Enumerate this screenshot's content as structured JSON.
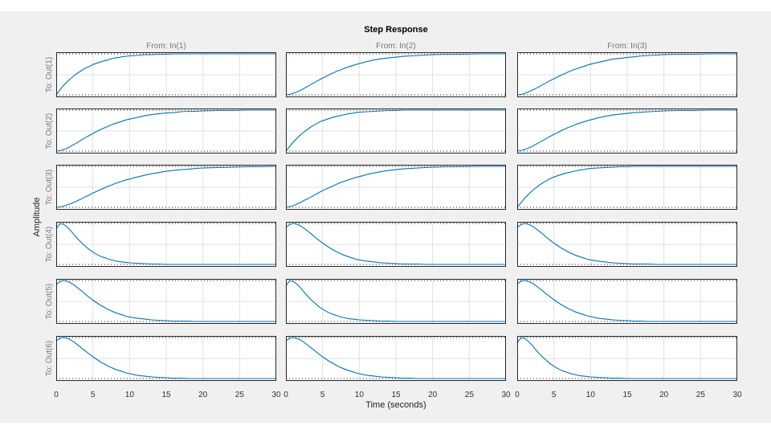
{
  "chart_data": {
    "type": "line",
    "title": "Step Response",
    "xlabel": "Time (seconds)",
    "ylabel": "Amplitude",
    "xlim": [
      0,
      30
    ],
    "xticks": [
      0,
      5,
      10,
      15,
      20,
      25,
      30
    ],
    "grid": true,
    "line_color": "#0072bd",
    "inputs": [
      "From: In(1)",
      "From: In(2)",
      "From: In(3)"
    ],
    "outputs": [
      "To: Out(1)",
      "To: Out(2)",
      "To: Out(3)",
      "To: Out(4)",
      "To: Out(5)",
      "To: Out(6)"
    ],
    "t": [
      0,
      0.5,
      1,
      1.5,
      2,
      2.5,
      3,
      3.5,
      4,
      4.5,
      5,
      5.5,
      6,
      6.5,
      7,
      7.5,
      8,
      8.5,
      9,
      9.5,
      10,
      11,
      12,
      13,
      14,
      15,
      16,
      17,
      18,
      19,
      20,
      22,
      24,
      26,
      28,
      30
    ],
    "panels": [
      [
        {
          "y": [
            0.0,
            0.12,
            0.23,
            0.32,
            0.4,
            0.48,
            0.54,
            0.6,
            0.65,
            0.69,
            0.74,
            0.77,
            0.8,
            0.83,
            0.85,
            0.88,
            0.9,
            0.91,
            0.93,
            0.94,
            0.95,
            0.96,
            0.98,
            0.98,
            0.99,
            0.99,
            1.0,
            1.0,
            1.0,
            1.0,
            1.0,
            1.0,
            1.0,
            1.0,
            1.0,
            1.0
          ]
        },
        {
          "y": [
            0.0,
            0.01,
            0.04,
            0.07,
            0.12,
            0.17,
            0.22,
            0.28,
            0.33,
            0.38,
            0.43,
            0.48,
            0.52,
            0.56,
            0.6,
            0.64,
            0.67,
            0.7,
            0.73,
            0.76,
            0.78,
            0.82,
            0.86,
            0.89,
            0.91,
            0.93,
            0.94,
            0.96,
            0.97,
            0.97,
            0.98,
            0.99,
            0.99,
            1.0,
            1.0,
            1.0
          ]
        },
        {
          "y": [
            0.0,
            0.01,
            0.03,
            0.06,
            0.09,
            0.13,
            0.17,
            0.21,
            0.26,
            0.3,
            0.35,
            0.39,
            0.43,
            0.47,
            0.51,
            0.54,
            0.58,
            0.61,
            0.64,
            0.67,
            0.69,
            0.74,
            0.78,
            0.82,
            0.85,
            0.88,
            0.9,
            0.92,
            0.93,
            0.95,
            0.96,
            0.97,
            0.98,
            0.99,
            0.99,
            1.0
          ]
        },
        {
          "y": [
            0.87,
            0.99,
            0.98,
            0.91,
            0.82,
            0.71,
            0.61,
            0.52,
            0.44,
            0.36,
            0.3,
            0.25,
            0.2,
            0.17,
            0.14,
            0.11,
            0.09,
            0.07,
            0.06,
            0.05,
            0.04,
            0.03,
            0.02,
            0.01,
            0.01,
            0.0,
            0.0,
            0.0,
            0.0,
            0.0,
            0.0,
            0.0,
            0.0,
            0.0,
            0.0,
            0.0
          ]
        },
        {
          "y": [
            0.9,
            0.97,
            1.0,
            0.98,
            0.94,
            0.88,
            0.81,
            0.74,
            0.66,
            0.59,
            0.52,
            0.46,
            0.4,
            0.35,
            0.3,
            0.26,
            0.22,
            0.19,
            0.16,
            0.13,
            0.11,
            0.08,
            0.06,
            0.04,
            0.03,
            0.02,
            0.01,
            0.01,
            0.01,
            0.0,
            0.0,
            0.0,
            0.0,
            0.0,
            0.0,
            0.0
          ]
        },
        {
          "y": [
            0.92,
            0.98,
            1.0,
            0.98,
            0.94,
            0.88,
            0.81,
            0.74,
            0.67,
            0.6,
            0.53,
            0.47,
            0.41,
            0.36,
            0.31,
            0.27,
            0.23,
            0.2,
            0.17,
            0.14,
            0.12,
            0.08,
            0.06,
            0.04,
            0.03,
            0.02,
            0.01,
            0.01,
            0.0,
            0.0,
            0.0,
            0.0,
            0.0,
            0.0,
            0.0,
            0.0
          ]
        }
      ],
      [
        {
          "y": [
            0.0,
            0.01,
            0.04,
            0.07,
            0.11,
            0.16,
            0.21,
            0.26,
            0.31,
            0.36,
            0.41,
            0.45,
            0.5,
            0.54,
            0.58,
            0.61,
            0.65,
            0.68,
            0.71,
            0.74,
            0.76,
            0.81,
            0.85,
            0.88,
            0.9,
            0.92,
            0.94,
            0.95,
            0.96,
            0.97,
            0.98,
            0.99,
            0.99,
            1.0,
            1.0,
            1.0
          ]
        },
        {
          "y": [
            0.0,
            0.11,
            0.22,
            0.31,
            0.4,
            0.47,
            0.54,
            0.6,
            0.65,
            0.7,
            0.74,
            0.77,
            0.8,
            0.83,
            0.85,
            0.87,
            0.89,
            0.91,
            0.92,
            0.94,
            0.95,
            0.96,
            0.97,
            0.98,
            0.99,
            0.99,
            1.0,
            1.0,
            1.0,
            1.0,
            1.0,
            1.0,
            1.0,
            1.0,
            1.0,
            1.0
          ]
        },
        {
          "y": [
            0.0,
            0.02,
            0.04,
            0.08,
            0.12,
            0.17,
            0.21,
            0.26,
            0.31,
            0.36,
            0.41,
            0.45,
            0.49,
            0.53,
            0.57,
            0.61,
            0.64,
            0.67,
            0.7,
            0.73,
            0.75,
            0.8,
            0.84,
            0.87,
            0.9,
            0.92,
            0.94,
            0.95,
            0.96,
            0.97,
            0.98,
            0.99,
            0.99,
            1.0,
            1.0,
            1.0
          ]
        },
        {
          "y": [
            0.9,
            0.97,
            1.0,
            0.98,
            0.94,
            0.88,
            0.81,
            0.74,
            0.66,
            0.59,
            0.52,
            0.46,
            0.4,
            0.35,
            0.3,
            0.26,
            0.22,
            0.19,
            0.16,
            0.13,
            0.11,
            0.08,
            0.06,
            0.04,
            0.03,
            0.02,
            0.01,
            0.01,
            0.01,
            0.0,
            0.0,
            0.0,
            0.0,
            0.0,
            0.0,
            0.0
          ]
        },
        {
          "y": [
            0.87,
            0.99,
            0.98,
            0.91,
            0.82,
            0.71,
            0.61,
            0.52,
            0.44,
            0.36,
            0.3,
            0.25,
            0.2,
            0.17,
            0.14,
            0.11,
            0.09,
            0.07,
            0.06,
            0.05,
            0.04,
            0.03,
            0.02,
            0.01,
            0.01,
            0.0,
            0.0,
            0.0,
            0.0,
            0.0,
            0.0,
            0.0,
            0.0,
            0.0,
            0.0,
            0.0
          ]
        },
        {
          "y": [
            0.92,
            0.98,
            1.0,
            0.98,
            0.94,
            0.88,
            0.81,
            0.74,
            0.67,
            0.6,
            0.53,
            0.47,
            0.41,
            0.36,
            0.31,
            0.27,
            0.23,
            0.2,
            0.17,
            0.14,
            0.12,
            0.08,
            0.06,
            0.04,
            0.03,
            0.02,
            0.01,
            0.01,
            0.0,
            0.0,
            0.0,
            0.0,
            0.0,
            0.0,
            0.0,
            0.0
          ]
        }
      ],
      [
        {
          "y": [
            0.0,
            0.01,
            0.03,
            0.07,
            0.11,
            0.15,
            0.2,
            0.25,
            0.3,
            0.35,
            0.39,
            0.44,
            0.48,
            0.52,
            0.56,
            0.6,
            0.63,
            0.66,
            0.69,
            0.72,
            0.75,
            0.79,
            0.83,
            0.87,
            0.89,
            0.91,
            0.93,
            0.95,
            0.96,
            0.97,
            0.98,
            0.99,
            0.99,
            1.0,
            1.0,
            1.0
          ]
        },
        {
          "y": [
            0.0,
            0.01,
            0.04,
            0.07,
            0.11,
            0.16,
            0.21,
            0.26,
            0.31,
            0.36,
            0.41,
            0.45,
            0.5,
            0.54,
            0.58,
            0.61,
            0.65,
            0.68,
            0.71,
            0.74,
            0.76,
            0.81,
            0.85,
            0.88,
            0.9,
            0.92,
            0.94,
            0.95,
            0.96,
            0.97,
            0.98,
            0.99,
            0.99,
            1.0,
            1.0,
            1.0
          ]
        },
        {
          "y": [
            0.0,
            0.11,
            0.22,
            0.31,
            0.4,
            0.47,
            0.54,
            0.6,
            0.65,
            0.7,
            0.74,
            0.77,
            0.8,
            0.83,
            0.85,
            0.87,
            0.89,
            0.91,
            0.92,
            0.94,
            0.95,
            0.96,
            0.97,
            0.98,
            0.99,
            0.99,
            1.0,
            1.0,
            1.0,
            1.0,
            1.0,
            1.0,
            1.0,
            1.0,
            1.0,
            1.0
          ]
        },
        {
          "y": [
            0.9,
            0.97,
            1.0,
            0.98,
            0.94,
            0.88,
            0.81,
            0.74,
            0.66,
            0.59,
            0.52,
            0.46,
            0.4,
            0.35,
            0.3,
            0.26,
            0.22,
            0.19,
            0.16,
            0.13,
            0.11,
            0.08,
            0.06,
            0.04,
            0.03,
            0.02,
            0.01,
            0.01,
            0.01,
            0.0,
            0.0,
            0.0,
            0.0,
            0.0,
            0.0,
            0.0
          ]
        },
        {
          "y": [
            0.92,
            0.98,
            1.0,
            0.98,
            0.94,
            0.88,
            0.81,
            0.74,
            0.67,
            0.6,
            0.53,
            0.47,
            0.41,
            0.36,
            0.31,
            0.27,
            0.23,
            0.2,
            0.17,
            0.14,
            0.12,
            0.08,
            0.06,
            0.04,
            0.03,
            0.02,
            0.01,
            0.01,
            0.0,
            0.0,
            0.0,
            0.0,
            0.0,
            0.0,
            0.0,
            0.0
          ]
        },
        {
          "y": [
            0.87,
            0.99,
            0.98,
            0.91,
            0.82,
            0.71,
            0.61,
            0.52,
            0.44,
            0.36,
            0.3,
            0.25,
            0.2,
            0.17,
            0.14,
            0.11,
            0.09,
            0.07,
            0.06,
            0.05,
            0.04,
            0.03,
            0.02,
            0.01,
            0.01,
            0.0,
            0.0,
            0.0,
            0.0,
            0.0,
            0.0,
            0.0,
            0.0,
            0.0,
            0.0,
            0.0
          ]
        }
      ]
    ]
  }
}
